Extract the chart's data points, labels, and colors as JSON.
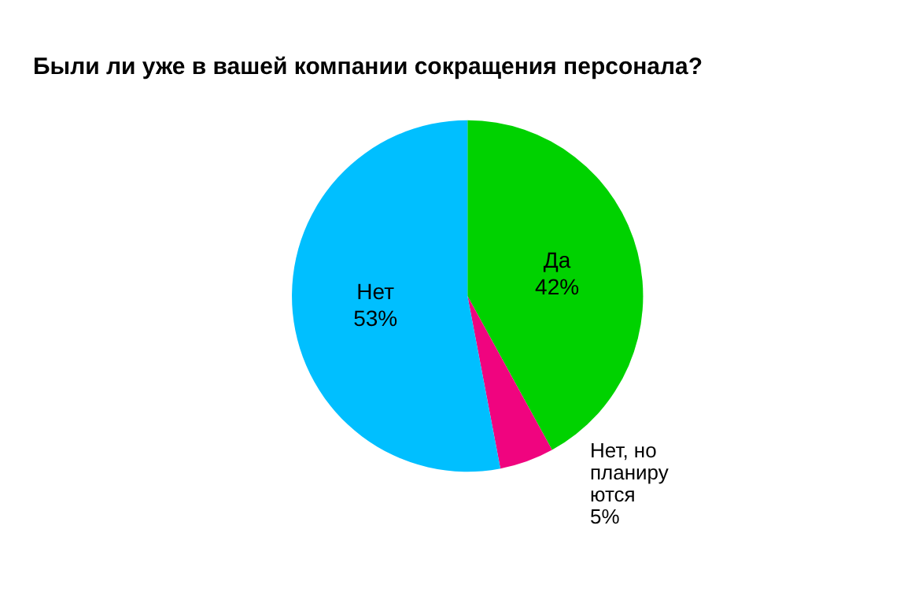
{
  "chart_data": {
    "type": "pie",
    "title": "Были ли уже в вашей компании сокращения персонала?",
    "categories": [
      "Да",
      "Нет, но планируются",
      "Нет"
    ],
    "values": [
      42,
      5,
      53
    ],
    "colors": [
      "#00d200",
      "#f0047f",
      "#00bfff"
    ],
    "value_labels": [
      "42%",
      "5%",
      "53%"
    ],
    "legend": false
  }
}
